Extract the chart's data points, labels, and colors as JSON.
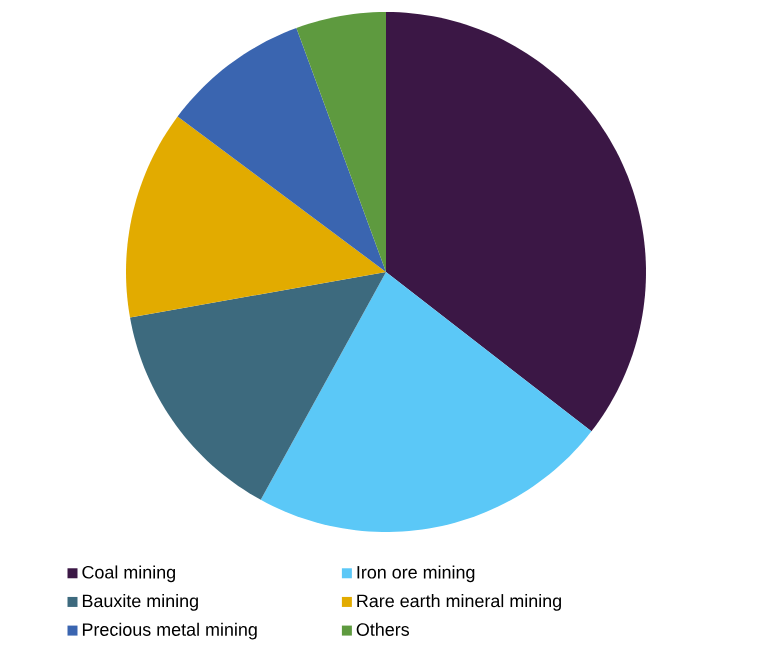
{
  "chart_data": {
    "type": "pie",
    "categories": [
      "Coal mining",
      "Iron ore mining",
      "Bauxite mining",
      "Rare earth mineral mining",
      "Precious metal mining",
      "Others"
    ],
    "values": [
      35.5,
      22.5,
      14.2,
      13.0,
      9.2,
      5.6
    ],
    "colors": [
      "#3b1745",
      "#5bc8f7",
      "#3d6a7e",
      "#e2ab00",
      "#3a65b0",
      "#5e9a3f"
    ],
    "legend": "bottom"
  }
}
